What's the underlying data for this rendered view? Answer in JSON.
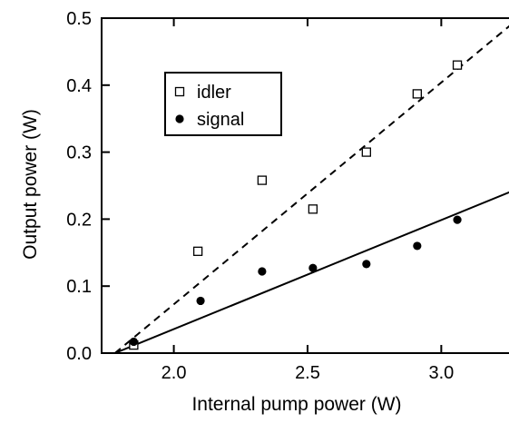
{
  "chart_data": {
    "type": "scatter",
    "xlabel": "Internal pump power (W)",
    "ylabel": "Output power (W)",
    "xlim": [
      1.73,
      3.26
    ],
    "ylim": [
      0.0,
      0.5
    ],
    "x_ticks": [
      2.0,
      2.5,
      3.0
    ],
    "x_tick_labels": [
      "2.0",
      "2.5",
      "3.0"
    ],
    "y_ticks": [
      0.0,
      0.1,
      0.2,
      0.3,
      0.4,
      0.5
    ],
    "y_tick_labels": [
      "0.0",
      "0.1",
      "0.2",
      "0.3",
      "0.4",
      "0.5"
    ],
    "legend_position": "upper-left",
    "series": [
      {
        "name": "idler",
        "marker": "open-square",
        "color": "#000000",
        "points": [
          [
            1.85,
            0.012
          ],
          [
            2.09,
            0.152
          ],
          [
            2.33,
            0.258
          ],
          [
            2.52,
            0.215
          ],
          [
            2.72,
            0.3
          ],
          [
            2.91,
            0.387
          ],
          [
            3.06,
            0.43
          ]
        ]
      },
      {
        "name": "signal",
        "marker": "filled-circle",
        "color": "#000000",
        "points": [
          [
            1.85,
            0.017
          ],
          [
            2.1,
            0.078
          ],
          [
            2.33,
            0.122
          ],
          [
            2.52,
            0.127
          ],
          [
            2.72,
            0.133
          ],
          [
            2.91,
            0.16
          ],
          [
            3.06,
            0.199
          ]
        ]
      }
    ],
    "fit_lines": [
      {
        "series": "idler",
        "style": "dashed",
        "from": [
          1.78,
          0.0
        ],
        "to": [
          3.26,
          0.49
        ]
      },
      {
        "series": "signal",
        "style": "solid",
        "from": [
          1.78,
          0.0
        ],
        "to": [
          3.26,
          0.241
        ]
      }
    ]
  }
}
